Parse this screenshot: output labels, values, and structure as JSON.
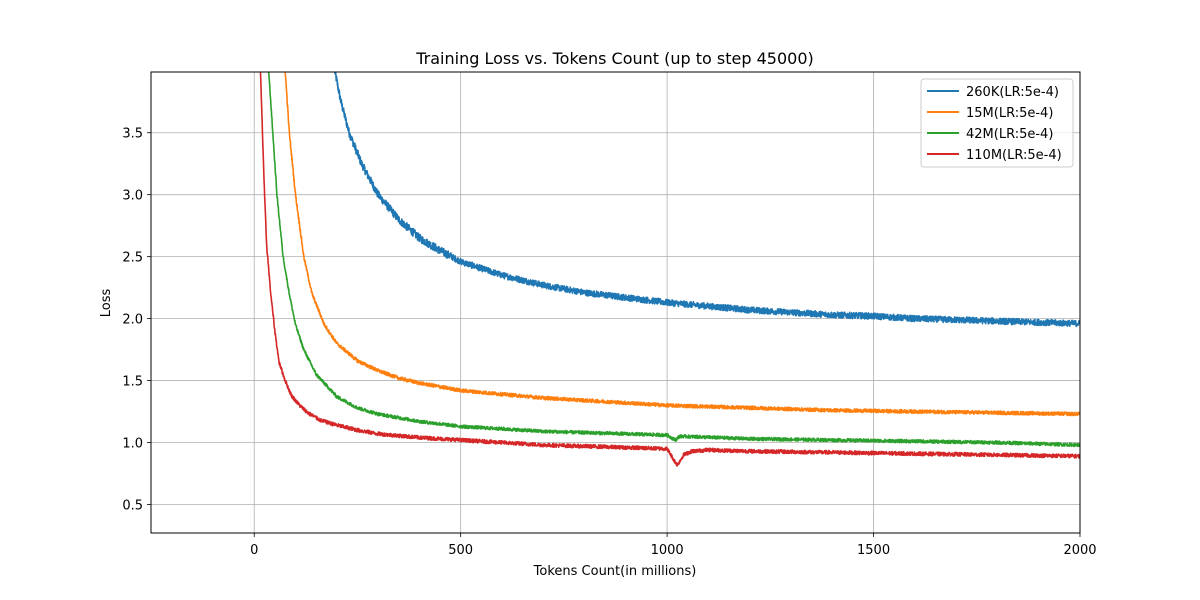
{
  "chart_data": {
    "type": "line",
    "title": "Training Loss vs. Tokens Count (up to step 45000)",
    "xlabel": "Tokens Count(in millions)",
    "ylabel": "Loss",
    "xlim": [
      -250,
      2000
    ],
    "ylim": [
      0.27,
      3.99
    ],
    "xticks": [
      0,
      500,
      1000,
      1500,
      2000
    ],
    "yticks": [
      0.5,
      1.0,
      1.5,
      2.0,
      2.5,
      3.0,
      3.5
    ],
    "xtick_labels": [
      "0",
      "500",
      "1000",
      "1500",
      "2000"
    ],
    "ytick_labels": [
      "0.5",
      "1.0",
      "1.5",
      "2.0",
      "2.5",
      "3.0",
      "3.5"
    ],
    "grid": true,
    "legend_position": "top-right",
    "series": [
      {
        "name": "260K(LR:5e-4)",
        "color": "#1f77b4",
        "noise": 0.025,
        "x": [
          195,
          210,
          230,
          260,
          300,
          350,
          400,
          450,
          500,
          600,
          700,
          800,
          900,
          1000,
          1100,
          1200,
          1300,
          1400,
          1500,
          1600,
          1700,
          1800,
          1900,
          2000
        ],
        "y": [
          4.0,
          3.75,
          3.5,
          3.25,
          3.0,
          2.8,
          2.65,
          2.55,
          2.46,
          2.35,
          2.27,
          2.21,
          2.17,
          2.13,
          2.1,
          2.07,
          2.05,
          2.03,
          2.02,
          2.0,
          1.99,
          1.98,
          1.97,
          1.96
        ]
      },
      {
        "name": "15M(LR:5e-4)",
        "color": "#ff7f0e",
        "noise": 0.014,
        "x": [
          75,
          85,
          100,
          120,
          140,
          170,
          200,
          250,
          300,
          350,
          400,
          500,
          600,
          700,
          800,
          1000,
          1200,
          1400,
          1600,
          1800,
          2000
        ],
        "y": [
          4.0,
          3.5,
          3.0,
          2.5,
          2.2,
          1.95,
          1.8,
          1.66,
          1.58,
          1.52,
          1.48,
          1.42,
          1.39,
          1.36,
          1.34,
          1.3,
          1.28,
          1.26,
          1.25,
          1.24,
          1.23
        ]
      },
      {
        "name": "42M(LR:5e-4)",
        "color": "#2ca02c",
        "noise": 0.013,
        "x": [
          35,
          45,
          55,
          70,
          85,
          100,
          120,
          150,
          200,
          250,
          300,
          400,
          500,
          600,
          700,
          800,
          900,
          1000,
          1020,
          1030,
          1040,
          1200,
          1400,
          1600,
          1800,
          2000
        ],
        "y": [
          4.0,
          3.5,
          3.0,
          2.5,
          2.2,
          1.95,
          1.75,
          1.55,
          1.37,
          1.28,
          1.23,
          1.17,
          1.13,
          1.11,
          1.09,
          1.08,
          1.07,
          1.06,
          1.02,
          1.05,
          1.05,
          1.03,
          1.02,
          1.01,
          1.0,
          0.98
        ]
      },
      {
        "name": "110M(LR:5e-4)",
        "color": "#d62728",
        "noise": 0.015,
        "x": [
          15,
          20,
          25,
          30,
          40,
          50,
          60,
          75,
          90,
          110,
          130,
          160,
          200,
          250,
          300,
          400,
          500,
          600,
          700,
          800,
          900,
          1000,
          1020,
          1025,
          1040,
          1060,
          1100,
          1200,
          1400,
          1600,
          1800,
          2000
        ],
        "y": [
          4.0,
          3.5,
          3.0,
          2.6,
          2.2,
          1.9,
          1.65,
          1.5,
          1.38,
          1.3,
          1.24,
          1.18,
          1.14,
          1.1,
          1.07,
          1.04,
          1.02,
          1.0,
          0.98,
          0.97,
          0.96,
          0.95,
          0.84,
          0.82,
          0.9,
          0.93,
          0.94,
          0.93,
          0.92,
          0.91,
          0.9,
          0.89
        ]
      }
    ]
  }
}
